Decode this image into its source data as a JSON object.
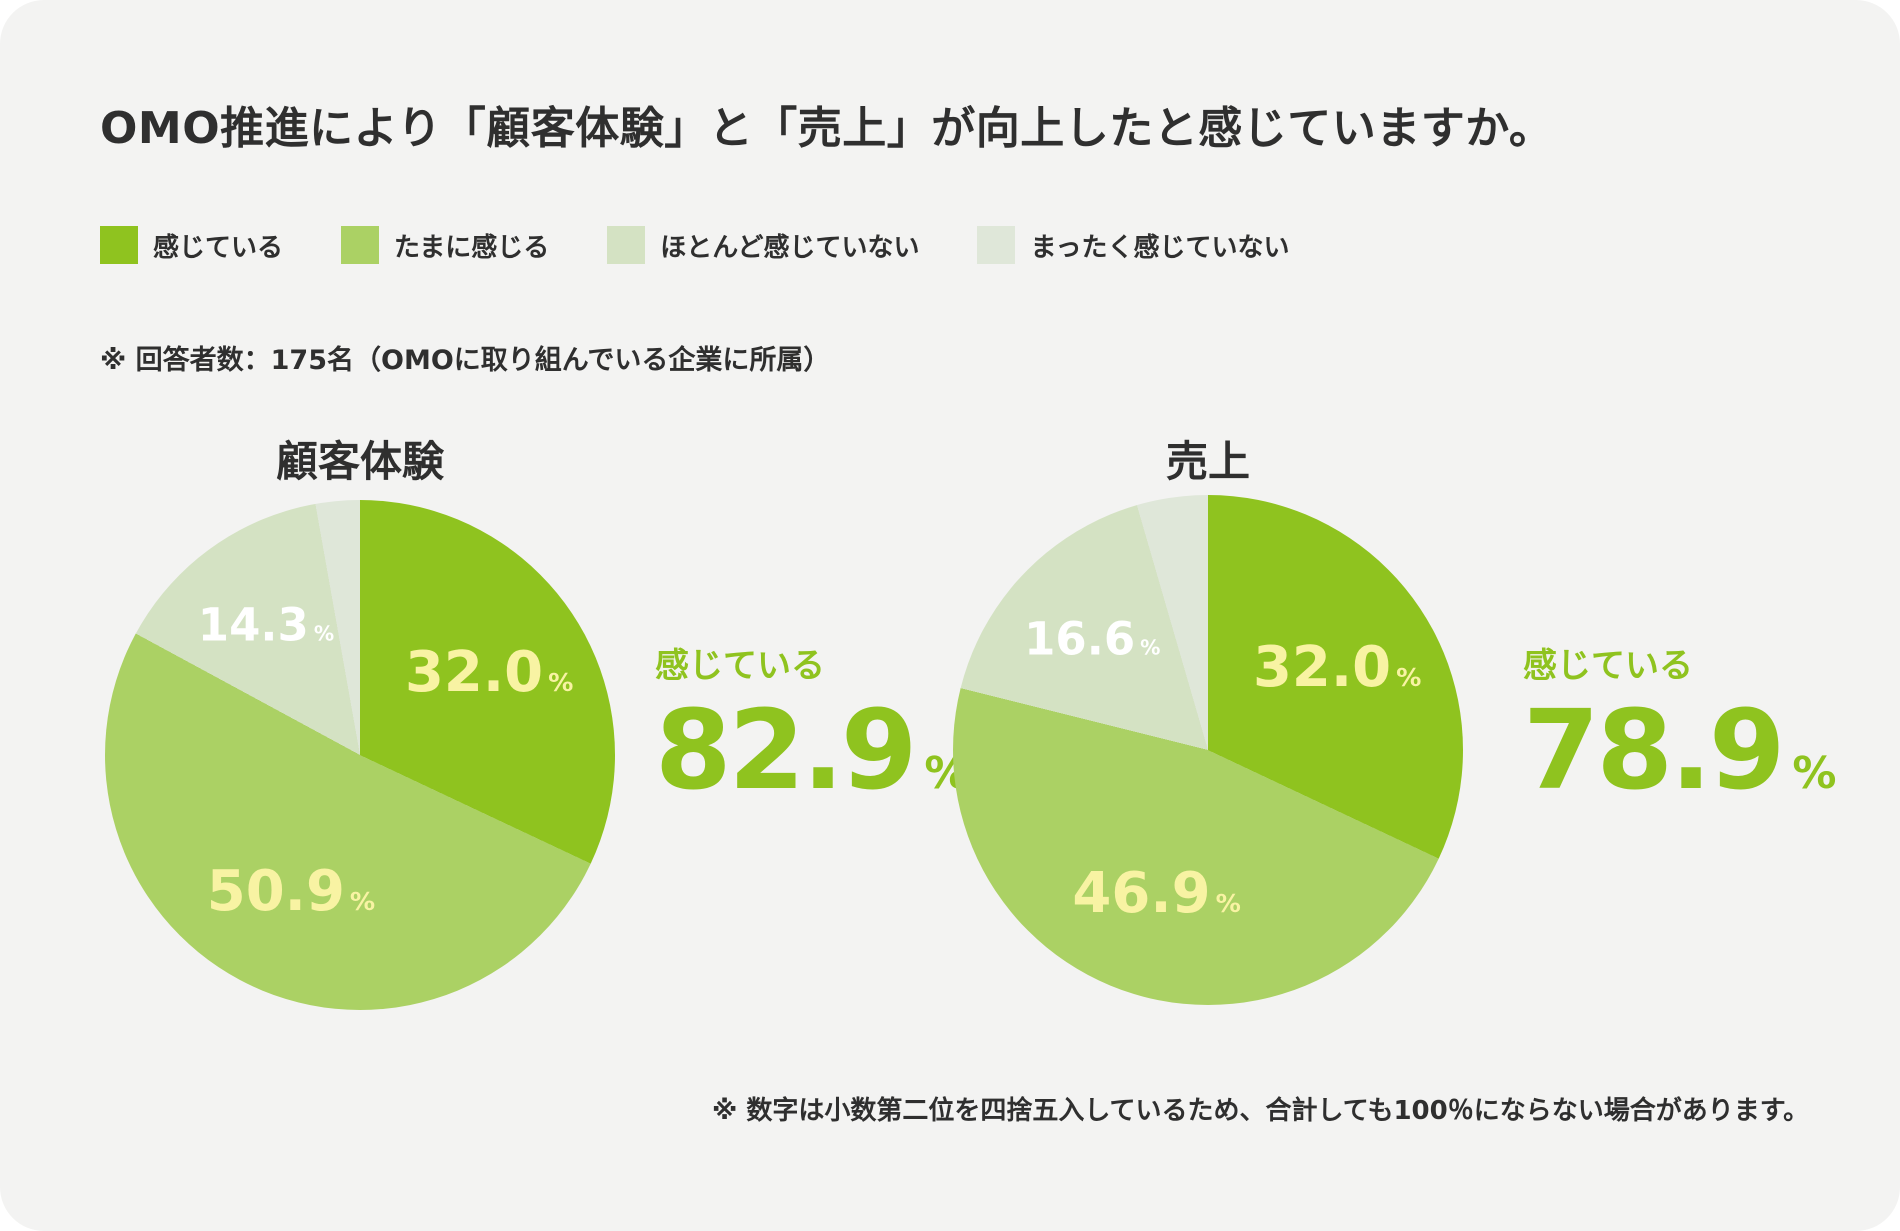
{
  "page": {
    "title": "OMO推進により「顧客体験」と「売上」が向上したと感じていますか。",
    "respondents_note": "※ 回答者数：175名（OMOに取り組んでいる企業に所属）",
    "footer_note": "※ 数字は小数第二位を四捨五入しているため、合計しても100％にならない場合があります。"
  },
  "colors": {
    "card_background": "#f3f3f2",
    "text_dark": "#2f2f2f",
    "accent_green": "#8fc31f",
    "mid_green": "#abd164",
    "pale_green": "#d4e2c3",
    "palest_green": "#dfe7d9",
    "slice_label_cream": "#f8f3a3",
    "slice_label_white": "#ffffff"
  },
  "legend": {
    "items": [
      {
        "label": "感じている",
        "color": "#8fc31f"
      },
      {
        "label": "たまに感じる",
        "color": "#abd164"
      },
      {
        "label": "ほとんど感じていない",
        "color": "#d4e2c3"
      },
      {
        "label": "まったく感じていない",
        "color": "#dfe7d9"
      }
    ]
  },
  "chart_data": [
    {
      "type": "pie",
      "title": "顧客体験",
      "start_angle_deg": 0,
      "direction": "clockwise",
      "slices": [
        {
          "label": "感じている",
          "value": 32.0,
          "value_shown": true,
          "color": "#8fc31f"
        },
        {
          "label": "たまに感じる",
          "value": 50.9,
          "value_shown": true,
          "color": "#abd164"
        },
        {
          "label": "ほとんど感じていない",
          "value": 14.3,
          "value_shown": true,
          "color": "#d4e2c3"
        },
        {
          "label": "まったく感じていない",
          "value": 2.8,
          "value_shown": false,
          "color": "#dfe7d9"
        }
      ],
      "callout": {
        "label": "感じている",
        "value": "82.9",
        "unit": "%"
      }
    },
    {
      "type": "pie",
      "title": "売上",
      "start_angle_deg": 0,
      "direction": "clockwise",
      "slices": [
        {
          "label": "感じている",
          "value": 32.0,
          "value_shown": true,
          "color": "#8fc31f"
        },
        {
          "label": "たまに感じる",
          "value": 46.9,
          "value_shown": true,
          "color": "#abd164"
        },
        {
          "label": "ほとんど感じていない",
          "value": 16.6,
          "value_shown": true,
          "color": "#d4e2c3"
        },
        {
          "label": "まったく感じていない",
          "value": 4.5,
          "value_shown": false,
          "color": "#dfe7d9"
        }
      ],
      "callout": {
        "label": "感じている",
        "value": "78.9",
        "unit": "%"
      }
    }
  ]
}
